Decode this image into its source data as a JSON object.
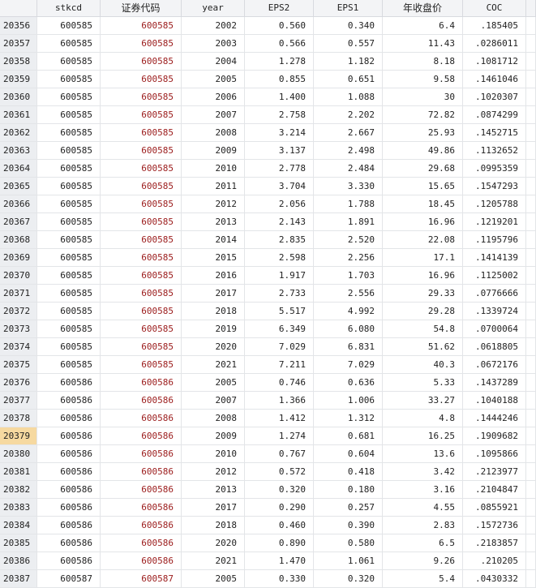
{
  "headers": [
    "",
    "stkcd",
    "证券代码",
    "year",
    "EPS2",
    "EPS1",
    "年收盘价",
    "COC"
  ],
  "selected_row": "20379",
  "colors": {
    "string_var": "#9b1b1b",
    "selected_row_number": "#f6d9a0"
  },
  "rows": [
    [
      "20356",
      "600585",
      "600585",
      "2002",
      "0.560",
      "0.340",
      "6.4",
      ".185405"
    ],
    [
      "20357",
      "600585",
      "600585",
      "2003",
      "0.566",
      "0.557",
      "11.43",
      ".0286011"
    ],
    [
      "20358",
      "600585",
      "600585",
      "2004",
      "1.278",
      "1.182",
      "8.18",
      ".1081712"
    ],
    [
      "20359",
      "600585",
      "600585",
      "2005",
      "0.855",
      "0.651",
      "9.58",
      ".1461046"
    ],
    [
      "20360",
      "600585",
      "600585",
      "2006",
      "1.400",
      "1.088",
      "30",
      ".1020307"
    ],
    [
      "20361",
      "600585",
      "600585",
      "2007",
      "2.758",
      "2.202",
      "72.82",
      ".0874299"
    ],
    [
      "20362",
      "600585",
      "600585",
      "2008",
      "3.214",
      "2.667",
      "25.93",
      ".1452715"
    ],
    [
      "20363",
      "600585",
      "600585",
      "2009",
      "3.137",
      "2.498",
      "49.86",
      ".1132652"
    ],
    [
      "20364",
      "600585",
      "600585",
      "2010",
      "2.778",
      "2.484",
      "29.68",
      ".0995359"
    ],
    [
      "20365",
      "600585",
      "600585",
      "2011",
      "3.704",
      "3.330",
      "15.65",
      ".1547293"
    ],
    [
      "20366",
      "600585",
      "600585",
      "2012",
      "2.056",
      "1.788",
      "18.45",
      ".1205788"
    ],
    [
      "20367",
      "600585",
      "600585",
      "2013",
      "2.143",
      "1.891",
      "16.96",
      ".1219201"
    ],
    [
      "20368",
      "600585",
      "600585",
      "2014",
      "2.835",
      "2.520",
      "22.08",
      ".1195796"
    ],
    [
      "20369",
      "600585",
      "600585",
      "2015",
      "2.598",
      "2.256",
      "17.1",
      ".1414139"
    ],
    [
      "20370",
      "600585",
      "600585",
      "2016",
      "1.917",
      "1.703",
      "16.96",
      ".1125002"
    ],
    [
      "20371",
      "600585",
      "600585",
      "2017",
      "2.733",
      "2.556",
      "29.33",
      ".0776666"
    ],
    [
      "20372",
      "600585",
      "600585",
      "2018",
      "5.517",
      "4.992",
      "29.28",
      ".1339724"
    ],
    [
      "20373",
      "600585",
      "600585",
      "2019",
      "6.349",
      "6.080",
      "54.8",
      ".0700064"
    ],
    [
      "20374",
      "600585",
      "600585",
      "2020",
      "7.029",
      "6.831",
      "51.62",
      ".0618805"
    ],
    [
      "20375",
      "600585",
      "600585",
      "2021",
      "7.211",
      "7.029",
      "40.3",
      ".0672176"
    ],
    [
      "20376",
      "600586",
      "600586",
      "2005",
      "0.746",
      "0.636",
      "5.33",
      ".1437289"
    ],
    [
      "20377",
      "600586",
      "600586",
      "2007",
      "1.366",
      "1.006",
      "33.27",
      ".1040188"
    ],
    [
      "20378",
      "600586",
      "600586",
      "2008",
      "1.412",
      "1.312",
      "4.8",
      ".1444246"
    ],
    [
      "20379",
      "600586",
      "600586",
      "2009",
      "1.274",
      "0.681",
      "16.25",
      ".1909682"
    ],
    [
      "20380",
      "600586",
      "600586",
      "2010",
      "0.767",
      "0.604",
      "13.6",
      ".1095866"
    ],
    [
      "20381",
      "600586",
      "600586",
      "2012",
      "0.572",
      "0.418",
      "3.42",
      ".2123977"
    ],
    [
      "20382",
      "600586",
      "600586",
      "2013",
      "0.320",
      "0.180",
      "3.16",
      ".2104847"
    ],
    [
      "20383",
      "600586",
      "600586",
      "2017",
      "0.290",
      "0.257",
      "4.55",
      ".0855921"
    ],
    [
      "20384",
      "600586",
      "600586",
      "2018",
      "0.460",
      "0.390",
      "2.83",
      ".1572736"
    ],
    [
      "20385",
      "600586",
      "600586",
      "2020",
      "0.890",
      "0.580",
      "6.5",
      ".2183857"
    ],
    [
      "20386",
      "600586",
      "600586",
      "2021",
      "1.470",
      "1.061",
      "9.26",
      ".210205"
    ],
    [
      "20387",
      "600587",
      "600587",
      "2005",
      "0.330",
      "0.320",
      "5.4",
      ".0430332"
    ]
  ]
}
